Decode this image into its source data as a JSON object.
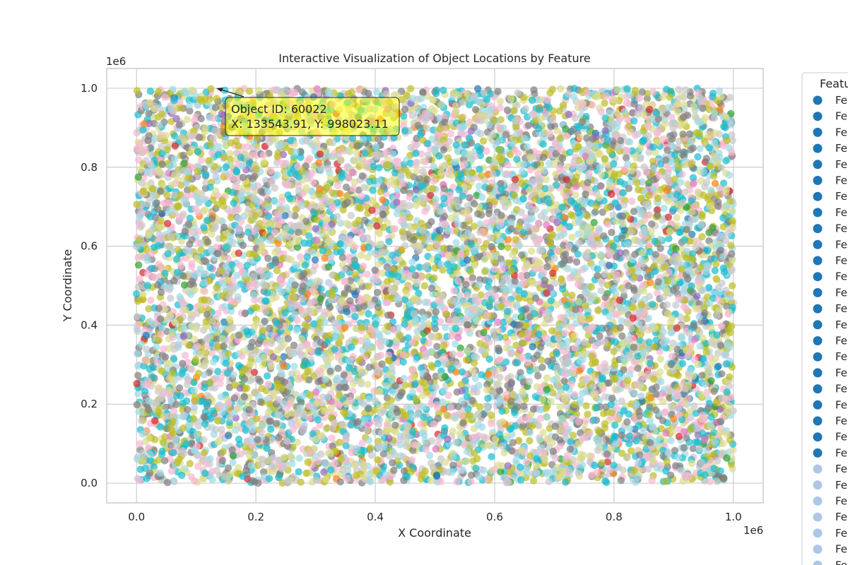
{
  "chart_data": {
    "type": "scatter",
    "title": "Interactive Visualization of Object Locations by Feature",
    "xlabel": "X Coordinate",
    "ylabel": "Y Coordinate",
    "x_offset_label": "1e6",
    "y_offset_label": "1e6",
    "xlim": [
      -50000,
      1050000
    ],
    "ylim": [
      -50000,
      1050000
    ],
    "x_ticks": [
      0,
      200000,
      400000,
      600000,
      800000,
      1000000
    ],
    "x_tick_labels": [
      "0.0",
      "0.2",
      "0.4",
      "0.6",
      "0.8",
      "1.0"
    ],
    "y_ticks": [
      0,
      200000,
      400000,
      600000,
      800000,
      1000000
    ],
    "y_tick_labels": [
      "0.0",
      "0.2",
      "0.4",
      "0.6",
      "0.8",
      "1.0"
    ],
    "grid": true,
    "point_distribution": {
      "x_range": [
        0,
        1000000
      ],
      "y_range": [
        0,
        1000000
      ],
      "note": "uniform random object locations, colored by feature"
    },
    "palette": [
      "#1f77b4",
      "#aec7e8",
      "#ff7f0e",
      "#d62728",
      "#2ca02c",
      "#9467bd",
      "#e377c2",
      "#f7b6d2",
      "#7f7f7f",
      "#c7c7c7",
      "#bcbd22",
      "#dbdb8d",
      "#17becf",
      "#9edae5"
    ],
    "dominant_colors": [
      "#bcbd22",
      "#17becf",
      "#7f7f7f",
      "#9edae5",
      "#f7b6d2",
      "#dbdb8d",
      "#c7c7c7"
    ],
    "annotation": {
      "line1": "Object ID: 60022",
      "line2": "X: 133543.91, Y: 998023.11",
      "point_x": 133543.91,
      "point_y": 998023.11,
      "box_color": "#ffff00"
    },
    "legend": {
      "title": "Featu",
      "placement": "right, outside plot (clipped)",
      "entries": [
        {
          "label": "Fe",
          "color": "#1f77b4"
        },
        {
          "label": "Fe",
          "color": "#1f77b4"
        },
        {
          "label": "Fe",
          "color": "#1f77b4"
        },
        {
          "label": "Fe",
          "color": "#1f77b4"
        },
        {
          "label": "Fe",
          "color": "#1f77b4"
        },
        {
          "label": "Fe",
          "color": "#1f77b4"
        },
        {
          "label": "Fe",
          "color": "#1f77b4"
        },
        {
          "label": "Fe",
          "color": "#1f77b4"
        },
        {
          "label": "Fe",
          "color": "#1f77b4"
        },
        {
          "label": "Fe",
          "color": "#1f77b4"
        },
        {
          "label": "Fe",
          "color": "#1f77b4"
        },
        {
          "label": "Fe",
          "color": "#1f77b4"
        },
        {
          "label": "Fe",
          "color": "#1f77b4"
        },
        {
          "label": "Fe",
          "color": "#1f77b4"
        },
        {
          "label": "Fe",
          "color": "#1f77b4"
        },
        {
          "label": "Fe",
          "color": "#1f77b4"
        },
        {
          "label": "Fe",
          "color": "#1f77b4"
        },
        {
          "label": "Fe",
          "color": "#1f77b4"
        },
        {
          "label": "Fe",
          "color": "#1f77b4"
        },
        {
          "label": "Fe",
          "color": "#1f77b4"
        },
        {
          "label": "Fe",
          "color": "#1f77b4"
        },
        {
          "label": "Fe",
          "color": "#1f77b4"
        },
        {
          "label": "Fe",
          "color": "#1f77b4"
        },
        {
          "label": "Fe",
          "color": "#aec7e8"
        },
        {
          "label": "Fe",
          "color": "#aec7e8"
        },
        {
          "label": "Fe",
          "color": "#aec7e8"
        },
        {
          "label": "Fe",
          "color": "#aec7e8"
        },
        {
          "label": "Fe",
          "color": "#aec7e8"
        },
        {
          "label": "Fe",
          "color": "#aec7e8"
        },
        {
          "label": "Fe",
          "color": "#aec7e8"
        }
      ]
    }
  }
}
